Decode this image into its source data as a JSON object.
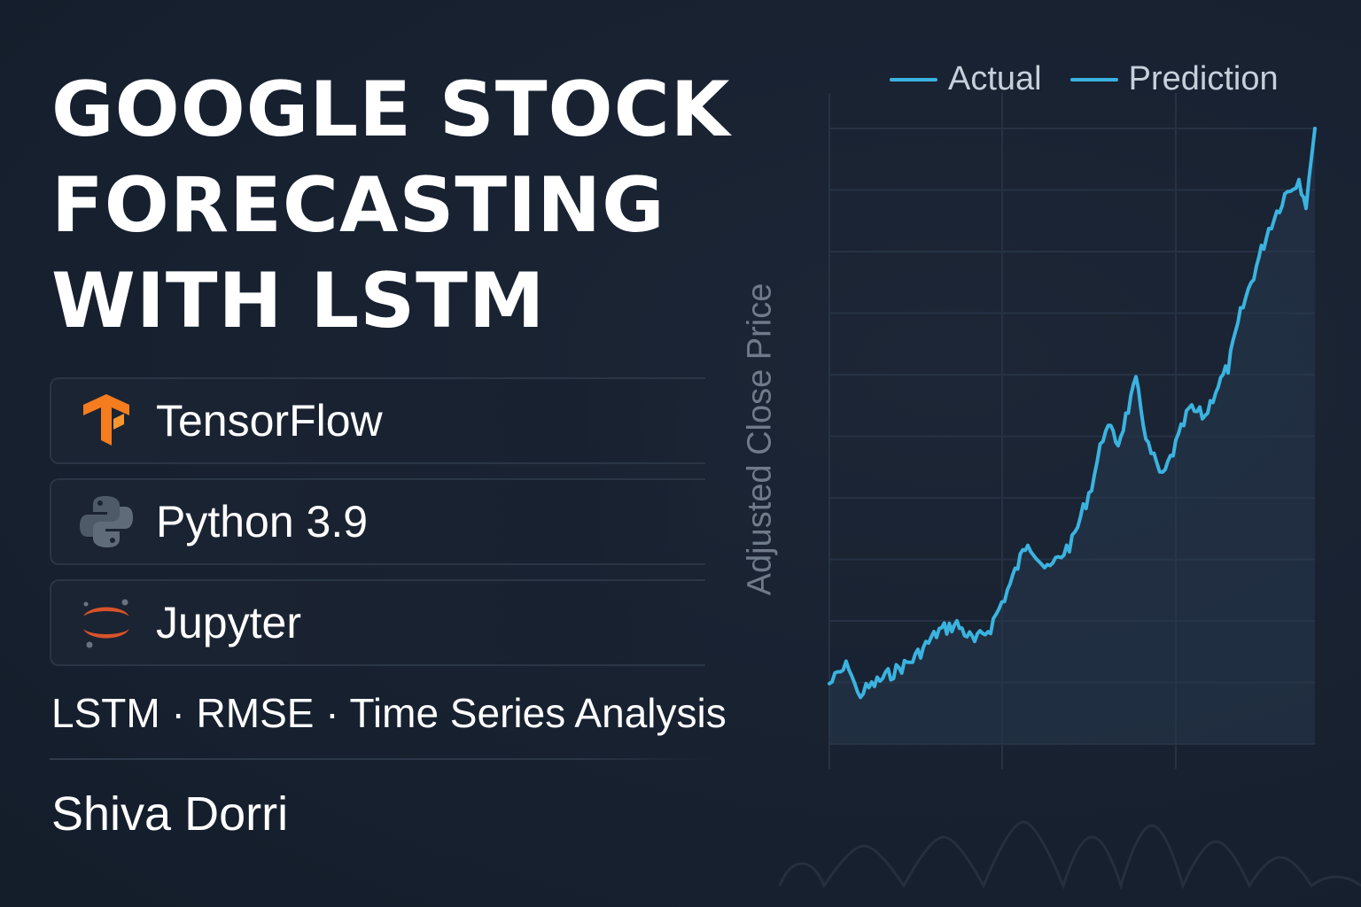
{
  "header": {
    "title_lines": [
      "GOOGLE STOCK",
      "FORECASTING",
      "WITH LSTM"
    ]
  },
  "tools": [
    {
      "label": "TensorFlow",
      "icon": "tensorflow-icon",
      "color": "#f57c1f"
    },
    {
      "label": "Python 3.9",
      "icon": "python-icon",
      "color": "#4e5a68"
    },
    {
      "label": "Jupyter",
      "icon": "jupyter-icon",
      "color": "#d8532a"
    }
  ],
  "keywords": "LSTM · RMSE · Time Series Analysis",
  "author": "Shiva Dorri",
  "chart_data": {
    "type": "line",
    "ylabel": "Adjusted Close Price",
    "xlabel": "",
    "grid": true,
    "legend": "top-right",
    "series": [
      {
        "name": "Actual",
        "color": "#3bb3e0"
      },
      {
        "name": "Prediction",
        "color": "#3bb3e0"
      }
    ]
  },
  "colors": {
    "background": "#172130",
    "line": "#3bb3e0",
    "grid": "#263244",
    "muted_text": "#6f7a8a"
  }
}
